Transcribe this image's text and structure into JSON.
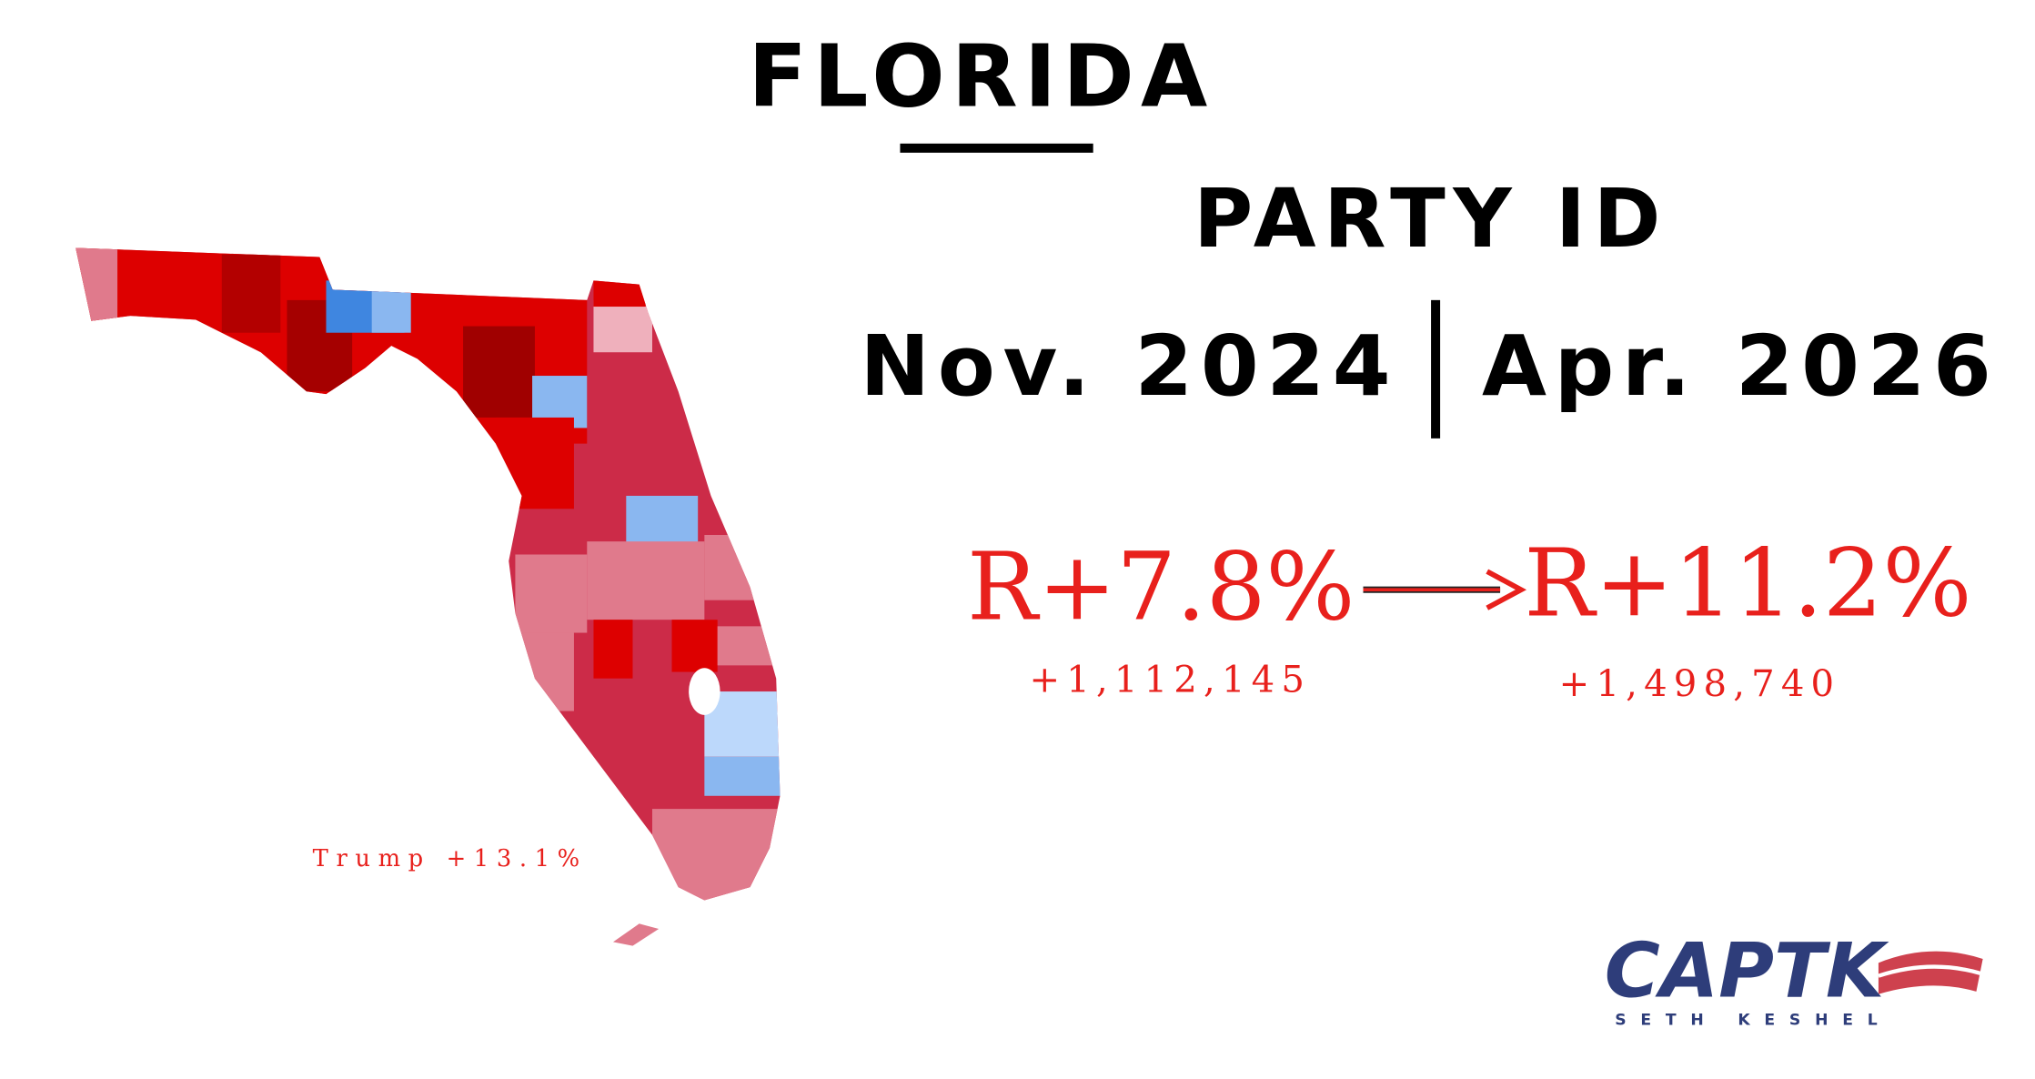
{
  "header": {
    "title": "FLORIDA",
    "subtitle": "PARTY ID"
  },
  "periods": {
    "from": "Nov. 2024",
    "to": "Apr. 2026"
  },
  "margins": {
    "from": {
      "value": "R+7.8%",
      "gain": "+1,112,145"
    },
    "to": {
      "value": "R+11.2%",
      "gain": "+1,498,740"
    }
  },
  "map": {
    "caption": "Trump +13.1%"
  },
  "logo": {
    "name": "CAPTK",
    "byline": "SETH KESHEL"
  }
}
